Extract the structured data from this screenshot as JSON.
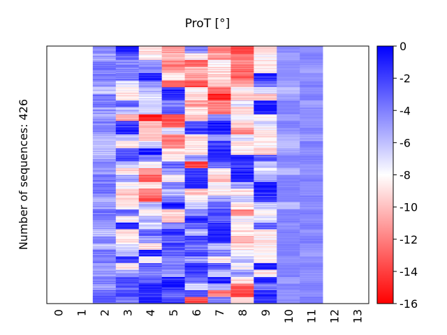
{
  "chart_data": {
    "type": "heatmap",
    "title": "ProT [°]",
    "ylabel": "Number of sequences: 426",
    "xlabel": "",
    "x_categories": [
      "0",
      "1",
      "2",
      "3",
      "4",
      "5",
      "6",
      "7",
      "8",
      "9",
      "10",
      "11",
      "12",
      "13"
    ],
    "n_sequences": 426,
    "colorbar": {
      "range": [
        -16,
        0
      ],
      "ticks": [
        "0",
        "-2",
        "-4",
        "-6",
        "-8",
        "-10",
        "-12",
        "-14",
        "-16"
      ],
      "tick_values": [
        0,
        -2,
        -4,
        -6,
        -8,
        -10,
        -12,
        -14,
        -16
      ],
      "colors": {
        "max": "#0000ff",
        "mid": "#ffffff",
        "min": "#ff0000"
      }
    },
    "note_columns_without_data": [
      "0",
      "1",
      "12",
      "13"
    ],
    "rows_sampled": [
      [
        null,
        null,
        -4.5,
        -1,
        -9,
        -11,
        -4,
        -12,
        -14,
        -9,
        -4.5,
        -4.5,
        null,
        null
      ],
      [
        null,
        null,
        -5,
        -3,
        -8.5,
        -10,
        -8.5,
        -11,
        -13,
        -8.5,
        -5,
        -4,
        null,
        null
      ],
      [
        null,
        null,
        -4,
        -4,
        -5,
        -12,
        -13,
        -8.5,
        -12,
        -8.5,
        -4.5,
        -4.5,
        null,
        null
      ],
      [
        null,
        null,
        -4,
        -4,
        -4.5,
        -11,
        -10,
        -9,
        -13,
        -8.5,
        -4.5,
        -5,
        null,
        null
      ],
      [
        null,
        null,
        -4,
        -4,
        -1,
        -8.5,
        -11,
        -9,
        -13,
        -1,
        -4.5,
        -4.5,
        null,
        null
      ],
      [
        null,
        null,
        -5,
        -7.5,
        -4,
        -13,
        -14,
        -10,
        -11,
        -3,
        -5,
        -4,
        null,
        null
      ],
      [
        null,
        null,
        -6,
        -8.5,
        -6,
        -1,
        -8.5,
        -13,
        -8,
        -7,
        -6,
        -4.5,
        null,
        null
      ],
      [
        null,
        null,
        -4,
        -8.5,
        -6.5,
        -1,
        -9,
        -15,
        -10,
        -10,
        -5,
        -4,
        null,
        null
      ],
      [
        null,
        null,
        -4,
        -3,
        -7,
        -4,
        -11,
        -12,
        -7,
        -1,
        -4,
        -5,
        null,
        null
      ],
      [
        null,
        null,
        -5,
        -6,
        -7,
        -3,
        -9,
        -12,
        -9,
        -1,
        -4,
        -4.5,
        null,
        null
      ],
      [
        null,
        null,
        -5,
        -11,
        -15,
        -14,
        -10,
        -4,
        -8,
        -8,
        -5,
        -4.5,
        null,
        null
      ],
      [
        null,
        null,
        -4,
        -2,
        -10,
        -13,
        -3,
        -1,
        -9,
        -7,
        -4,
        -4.5,
        null,
        null
      ],
      [
        null,
        null,
        -4,
        -1,
        -9,
        -7,
        -2,
        -1,
        -12,
        -8.5,
        -4.5,
        -4,
        null,
        null
      ],
      [
        null,
        null,
        -6,
        -6,
        -10,
        -12,
        -9,
        -5,
        -7,
        -9,
        -5.5,
        -5,
        null,
        null
      ],
      [
        null,
        null,
        -6,
        -9,
        -7,
        -12,
        -8.5,
        -2,
        -9,
        -8.5,
        -6,
        -4,
        null,
        null
      ],
      [
        null,
        null,
        -6,
        -3,
        -1,
        -9,
        -9,
        -1,
        -8.5,
        -10,
        -5,
        -4.5,
        null,
        null
      ],
      [
        null,
        null,
        -5,
        -2,
        -4,
        -8.5,
        -5,
        -1.5,
        -1,
        -3,
        -4,
        -4,
        null,
        null
      ],
      [
        null,
        null,
        -4,
        -6,
        -8,
        -3,
        -14,
        -3,
        -2,
        -6,
        -4.5,
        -4.5,
        null,
        null
      ],
      [
        null,
        null,
        -5,
        -9,
        -11,
        -5,
        -2,
        -8.5,
        -1,
        -7,
        -6,
        -4.5,
        null,
        null
      ],
      [
        null,
        null,
        -4,
        -5,
        -13,
        -8,
        -1,
        -10,
        -1,
        -5,
        -4,
        -4,
        null,
        null
      ],
      [
        null,
        null,
        -4,
        -8,
        -9,
        -4,
        -1,
        -8,
        -5,
        -1,
        -4,
        -4.5,
        null,
        null
      ],
      [
        null,
        null,
        -4,
        -10,
        -12,
        -6,
        -10,
        -8.5,
        -9,
        -1,
        -4,
        -4.5,
        null,
        null
      ],
      [
        null,
        null,
        -5,
        -9,
        -13,
        -4,
        -8,
        -5,
        -6,
        -2,
        -4,
        -4,
        null,
        null
      ],
      [
        null,
        null,
        -5,
        -8.5,
        -6,
        -1,
        -7,
        -3,
        -9,
        -6,
        -6,
        -4.5,
        null,
        null
      ],
      [
        null,
        null,
        -4,
        -3,
        -8.5,
        -9,
        -4,
        -2,
        -12,
        -8,
        -4,
        -4,
        null,
        null
      ],
      [
        null,
        null,
        -4,
        -8,
        -5,
        -10,
        -1,
        -3,
        -8,
        -7,
        -4,
        -4.5,
        null,
        null
      ],
      [
        null,
        null,
        -5,
        -1,
        -7,
        -4,
        -3,
        -1,
        -8.5,
        -3,
        -4.5,
        -4,
        null,
        null
      ],
      [
        null,
        null,
        -6,
        -9,
        -3,
        -1,
        -6,
        -1,
        -9,
        -8.5,
        -4,
        -4.5,
        null,
        null
      ],
      [
        null,
        null,
        -4,
        -8.5,
        -5,
        -3,
        -2,
        -1,
        -10,
        -8.5,
        -4,
        -4,
        null,
        null
      ],
      [
        null,
        null,
        -6,
        -7,
        -9,
        -2,
        -4,
        -6,
        -9,
        -8.5,
        -4,
        -4.5,
        null,
        null
      ],
      [
        null,
        null,
        -4,
        -6,
        -1,
        -3,
        -2,
        -4,
        -8,
        -8.5,
        -4,
        -5,
        null,
        null
      ],
      [
        null,
        null,
        -4,
        -2,
        -8,
        -4,
        -5,
        -8.5,
        -6,
        -8.5,
        -4.5,
        -4.5,
        null,
        null
      ],
      [
        null,
        null,
        -5,
        -8.5,
        -3,
        -4,
        -1,
        -3,
        -8,
        -1,
        -4,
        -4,
        null,
        null
      ],
      [
        null,
        null,
        -5,
        -5,
        -4,
        -5,
        -2,
        -6,
        -5,
        -8.5,
        -4,
        -4.5,
        null,
        null
      ],
      [
        null,
        null,
        -4,
        -2,
        -3,
        -1,
        -3,
        -1,
        -9,
        -1,
        -5,
        -4.5,
        null,
        null
      ],
      [
        null,
        null,
        -5,
        -3,
        -1,
        -1,
        -7,
        -6,
        -13,
        -4,
        -4,
        -4,
        null,
        null
      ],
      [
        null,
        null,
        -3,
        -2,
        -1,
        -3,
        -2,
        -12,
        -14,
        -1,
        -4.5,
        -4.5,
        null,
        null
      ],
      [
        null,
        null,
        -3,
        -4,
        -1,
        -2,
        -14,
        -4,
        -9,
        -2,
        -4.5,
        -4,
        null,
        null
      ]
    ]
  }
}
